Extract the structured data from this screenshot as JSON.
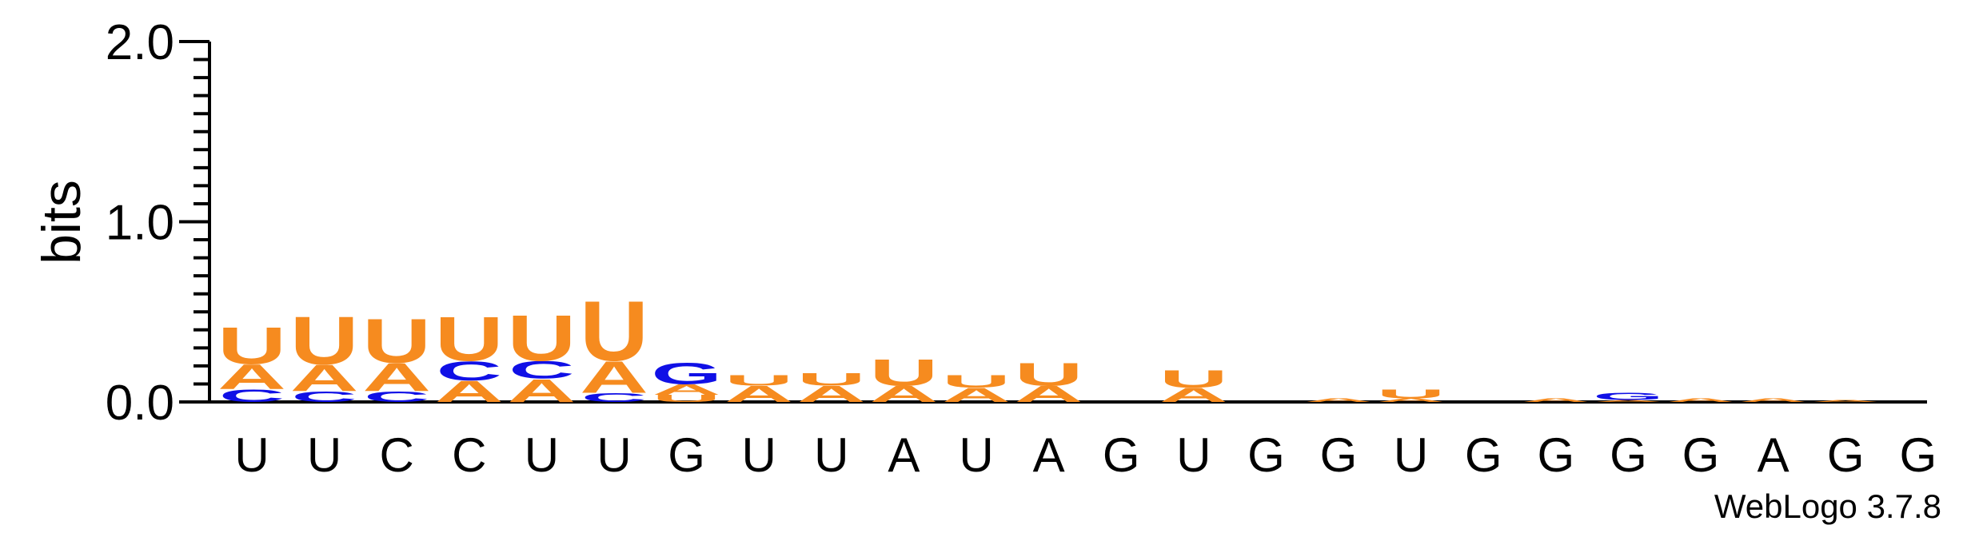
{
  "chart_data": {
    "type": "sequence-logo",
    "ylabel": "bits",
    "ylim": [
      0,
      2.0
    ],
    "yticks": [
      {
        "value": 0,
        "label": "0.0"
      },
      {
        "value": 1,
        "label": "1.0"
      },
      {
        "value": 2,
        "label": "2.0"
      }
    ],
    "yminor_step": 0.1,
    "footer": "WebLogo 3.7.8",
    "colors": {
      "U": "#f68b1f",
      "A": "#f68b1f",
      "C": "#1010e6",
      "G": "#1010e6"
    },
    "positions": [
      {
        "label": "U",
        "stacks": [
          {
            "letter": "C",
            "bits": 0.07
          },
          {
            "letter": "A",
            "bits": 0.14
          },
          {
            "letter": "U",
            "bits": 0.21
          }
        ]
      },
      {
        "label": "U",
        "stacks": [
          {
            "letter": "C",
            "bits": 0.06
          },
          {
            "letter": "A",
            "bits": 0.15
          },
          {
            "letter": "U",
            "bits": 0.27
          }
        ]
      },
      {
        "label": "C",
        "stacks": [
          {
            "letter": "C",
            "bits": 0.06
          },
          {
            "letter": "A",
            "bits": 0.16
          },
          {
            "letter": "U",
            "bits": 0.25
          }
        ]
      },
      {
        "label": "C",
        "stacks": [
          {
            "letter": "A",
            "bits": 0.12
          },
          {
            "letter": "C",
            "bits": 0.11
          },
          {
            "letter": "U",
            "bits": 0.25
          }
        ]
      },
      {
        "label": "U",
        "stacks": [
          {
            "letter": "A",
            "bits": 0.13
          },
          {
            "letter": "C",
            "bits": 0.1
          },
          {
            "letter": "U",
            "bits": 0.26
          }
        ]
      },
      {
        "label": "U",
        "stacks": [
          {
            "letter": "C",
            "bits": 0.05
          },
          {
            "letter": "A",
            "bits": 0.18
          },
          {
            "letter": "U",
            "bits": 0.34
          }
        ]
      },
      {
        "label": "G",
        "stacks": [
          {
            "letter": "U",
            "bits": 0.04
          },
          {
            "letter": "A",
            "bits": 0.06
          },
          {
            "letter": "G",
            "bits": 0.12
          }
        ]
      },
      {
        "label": "U",
        "stacks": [
          {
            "letter": "A",
            "bits": 0.09
          },
          {
            "letter": "U",
            "bits": 0.06
          }
        ]
      },
      {
        "label": "U",
        "stacks": [
          {
            "letter": "A",
            "bits": 0.09
          },
          {
            "letter": "U",
            "bits": 0.07
          }
        ]
      },
      {
        "label": "A",
        "stacks": [
          {
            "letter": "A",
            "bits": 0.09
          },
          {
            "letter": "U",
            "bits": 0.15
          }
        ]
      },
      {
        "label": "U",
        "stacks": [
          {
            "letter": "A",
            "bits": 0.08
          },
          {
            "letter": "U",
            "bits": 0.07
          }
        ]
      },
      {
        "label": "A",
        "stacks": [
          {
            "letter": "A",
            "bits": 0.09
          },
          {
            "letter": "U",
            "bits": 0.13
          }
        ]
      },
      {
        "label": "G",
        "stacks": []
      },
      {
        "label": "U",
        "stacks": [
          {
            "letter": "A",
            "bits": 0.08
          },
          {
            "letter": "U",
            "bits": 0.1
          }
        ]
      },
      {
        "label": "G",
        "stacks": []
      },
      {
        "label": "G",
        "stacks": [
          {
            "letter": "A",
            "bits": 0.02
          }
        ]
      },
      {
        "label": "U",
        "stacks": [
          {
            "letter": "A",
            "bits": 0.02
          },
          {
            "letter": "U",
            "bits": 0.05
          }
        ]
      },
      {
        "label": "G",
        "stacks": []
      },
      {
        "label": "G",
        "stacks": [
          {
            "letter": "A",
            "bits": 0.02
          }
        ]
      },
      {
        "label": "G",
        "stacks": [
          {
            "letter": "A",
            "bits": 0.01
          },
          {
            "letter": "G",
            "bits": 0.04
          }
        ]
      },
      {
        "label": "G",
        "stacks": [
          {
            "letter": "A",
            "bits": 0.02
          }
        ]
      },
      {
        "label": "A",
        "stacks": [
          {
            "letter": "A",
            "bits": 0.02
          }
        ]
      },
      {
        "label": "G",
        "stacks": [
          {
            "letter": "A",
            "bits": 0.01
          }
        ]
      },
      {
        "label": "G",
        "stacks": []
      }
    ]
  }
}
